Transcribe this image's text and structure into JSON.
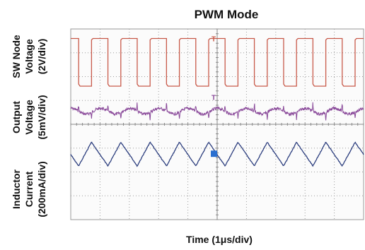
{
  "chart_data": {
    "type": "line",
    "title": "PWM Mode",
    "xlabel": "Time (1μs/div)",
    "x_divisions": 10,
    "y_divisions": 8,
    "grid": true,
    "grid_style": "dotted",
    "time_per_div_us": 1,
    "period_us": 1.0,
    "first_rising_edge_us": 0.27,
    "duty_cycle": 0.44,
    "channels": [
      {
        "name": "SW Node Voltage",
        "label_lines": [
          "SW Node",
          "Voltage",
          "(2V/div)"
        ],
        "color": "#c85a4a",
        "waveform": "square",
        "low_div": 0.4,
        "high_div": 2.4,
        "marker_level_div": 0.4
      },
      {
        "name": "Output Voltage",
        "label_lines": [
          "Output",
          "Voltage",
          "(5mV/div)"
        ],
        "color": "#8a4a9a",
        "waveform": "ripple",
        "baseline_div": 3.45,
        "ripple_div": 0.12,
        "spike_div": 0.45,
        "noise_div": 0.12
      },
      {
        "name": "Inductor Current",
        "label_lines": [
          "Inductor",
          "Current",
          "(200mA/div)"
        ],
        "color": "#2c3e7e",
        "waveform": "triangle",
        "center_div": 5.25,
        "pp_div": 1.0,
        "marker_level_div": 5.25
      }
    ]
  }
}
